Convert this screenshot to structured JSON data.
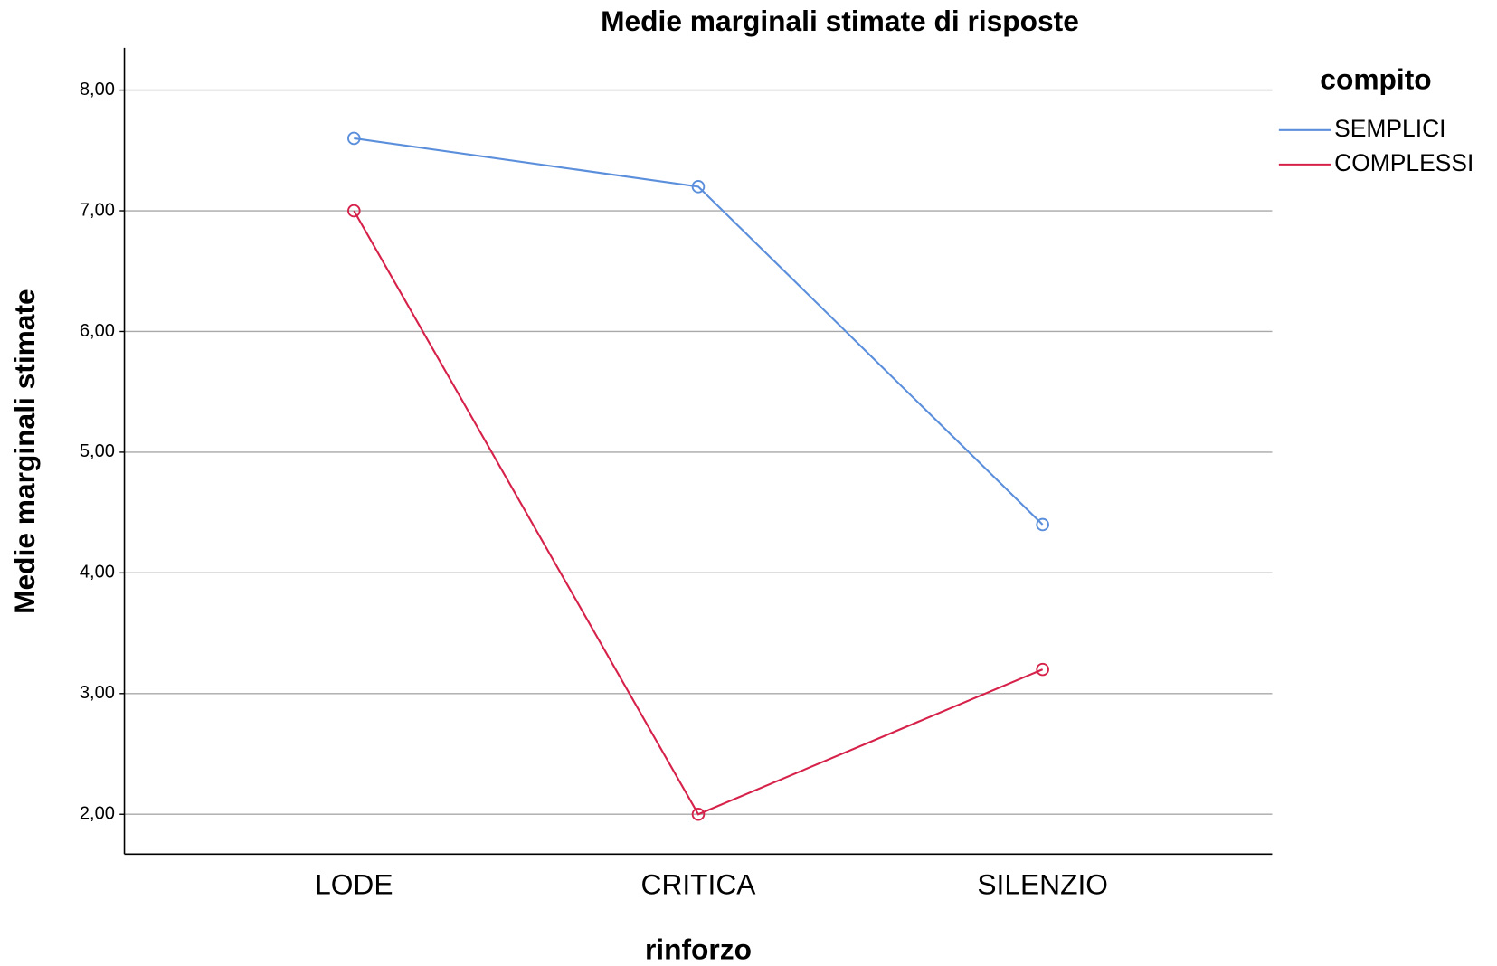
{
  "chart_data": {
    "type": "line",
    "title": "Medie marginali stimate di risposte",
    "x_label": "rinforzo",
    "y_label": "Medie marginali stimate",
    "legend_title": "compito",
    "legend_position": "right",
    "grid": true,
    "categories": [
      "LODE",
      "CRITICA",
      "SILENZIO"
    ],
    "series": [
      {
        "name": "SEMPLICI",
        "color": "#5b8fdc",
        "values": [
          7.6,
          7.2,
          4.4
        ]
      },
      {
        "name": "COMPLESSI",
        "color": "#d6224a",
        "values": [
          7.0,
          2.0,
          3.2
        ]
      }
    ],
    "ylim": [
      1.67,
      8.35
    ],
    "yticks": [
      {
        "value": 2,
        "label": "2,00"
      },
      {
        "value": 3,
        "label": "3,00"
      },
      {
        "value": 4,
        "label": "4,00"
      },
      {
        "value": 5,
        "label": "5,00"
      },
      {
        "value": 6,
        "label": "6,00"
      },
      {
        "value": 7,
        "label": "7,00"
      },
      {
        "value": 8,
        "label": "8,00"
      }
    ]
  }
}
